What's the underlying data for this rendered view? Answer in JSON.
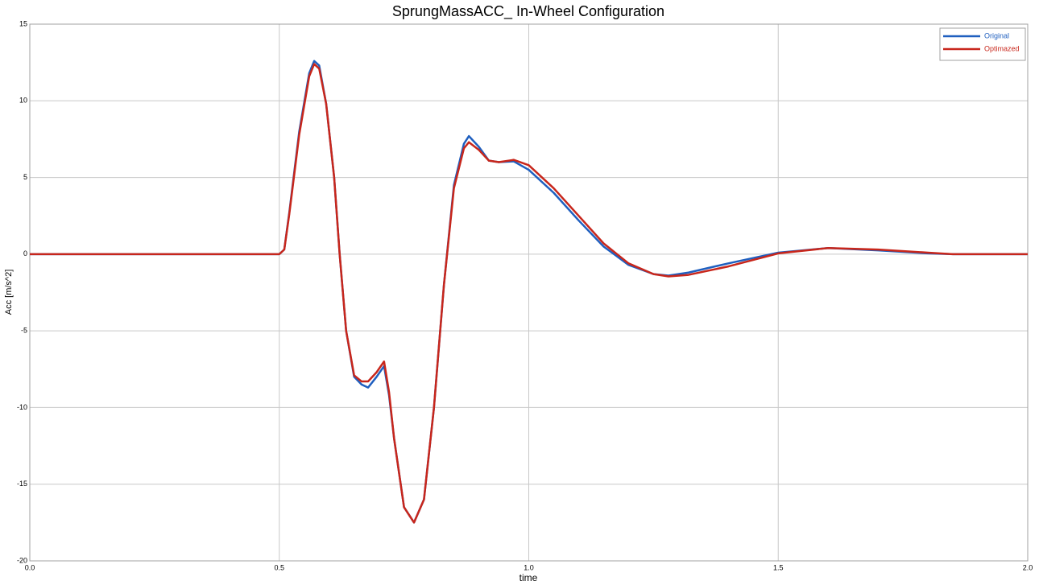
{
  "chart_data": {
    "type": "line",
    "title": "SprungMassACC_ In-Wheel Configuration",
    "x_label": "time",
    "y_label": "Acc [m/s^2]",
    "x": [
      0,
      0.5,
      0.51,
      0.52,
      0.54,
      0.56,
      0.57,
      0.58,
      0.594,
      0.61,
      0.621,
      0.634,
      0.65,
      0.665,
      0.678,
      0.695,
      0.71,
      0.72,
      0.73,
      0.75,
      0.77,
      0.79,
      0.81,
      0.83,
      0.85,
      0.87,
      0.88,
      0.9,
      0.92,
      0.94,
      0.97,
      1.0,
      1.05,
      1.1,
      1.15,
      1.2,
      1.25,
      1.28,
      1.32,
      1.4,
      1.5,
      1.6,
      1.7,
      1.8,
      1.85,
      2.0
    ],
    "series": [
      {
        "name": "Original",
        "color": "#1f5fbf",
        "values": [
          0,
          0,
          0.3,
          2.7,
          8,
          11.8,
          12.6,
          12.3,
          9.8,
          5,
          0,
          -5,
          -8,
          -8.5,
          -8.7,
          -8.0,
          -7.3,
          -9.2,
          -12,
          -16.5,
          -17.5,
          -16,
          -10,
          -2,
          4.5,
          7.2,
          7.7,
          7.0,
          6.1,
          6.0,
          6.05,
          5.5,
          4.0,
          2.2,
          0.5,
          -0.7,
          -1.3,
          -1.4,
          -1.2,
          -0.6,
          0.1,
          0.4,
          0.25,
          0.05,
          0,
          0
        ]
      },
      {
        "name": "Optimazed",
        "color": "#c8261b",
        "values": [
          0,
          0,
          0.3,
          2.6,
          7.8,
          11.6,
          12.4,
          12.1,
          9.8,
          5,
          0,
          -5,
          -7.9,
          -8.3,
          -8.3,
          -7.7,
          -7.0,
          -9.0,
          -12,
          -16.5,
          -17.5,
          -16,
          -10,
          -2,
          4.3,
          6.9,
          7.3,
          6.8,
          6.1,
          6.0,
          6.15,
          5.8,
          4.3,
          2.5,
          0.7,
          -0.6,
          -1.3,
          -1.45,
          -1.35,
          -0.8,
          0.05,
          0.4,
          0.3,
          0.1,
          0,
          0
        ]
      }
    ],
    "xlim": [
      0,
      2
    ],
    "ylim": [
      -20,
      15
    ],
    "xticks": [
      {
        "value": 0,
        "label": "0.0"
      },
      0.5,
      {
        "value": 1,
        "label": "1.0"
      },
      1.5,
      {
        "value": 2,
        "label": "2.0"
      }
    ],
    "yticks": [
      15,
      10,
      5,
      0,
      -5,
      -10,
      -15,
      -20
    ],
    "grid": true,
    "legend": "upper right"
  }
}
